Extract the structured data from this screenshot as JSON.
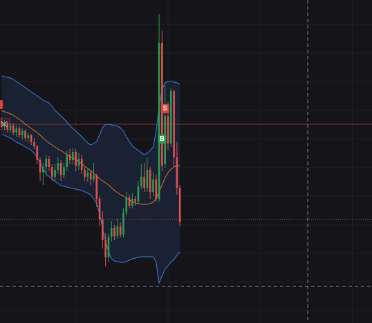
{
  "chart_data": {
    "type": "candlestick",
    "background": "#141419",
    "up_color": "#2e9e52",
    "down_color": "#e0534f",
    "grid": true,
    "grid_color": "#1f222b",
    "xlim": [
      -0.5,
      124.6
    ],
    "ylim": [
      0,
      468
    ],
    "xticks": [
      25,
      56,
      87,
      118
    ],
    "yticks": [
      18,
      59,
      101,
      142,
      184,
      225,
      267,
      308,
      350,
      391,
      433
    ],
    "open": [
      293,
      285,
      290,
      280,
      286,
      276,
      282,
      272,
      278,
      268,
      272,
      262,
      256,
      236,
      218,
      226,
      238,
      226,
      212,
      222,
      232,
      214,
      226,
      244,
      236,
      248,
      228,
      238,
      222,
      212,
      218,
      208,
      214,
      180,
      150,
      120,
      95,
      125,
      138,
      126,
      140,
      128,
      160,
      182,
      170,
      180,
      176,
      198,
      212,
      196,
      222,
      190,
      208,
      180,
      406,
      230,
      300,
      260,
      336,
      240,
      196
    ],
    "close": [
      286,
      290,
      280,
      286,
      276,
      282,
      272,
      278,
      268,
      272,
      262,
      256,
      236,
      218,
      226,
      238,
      226,
      212,
      222,
      232,
      214,
      226,
      244,
      236,
      248,
      228,
      238,
      222,
      212,
      218,
      208,
      214,
      180,
      150,
      120,
      95,
      125,
      138,
      126,
      140,
      128,
      160,
      182,
      170,
      180,
      176,
      198,
      212,
      196,
      222,
      190,
      208,
      180,
      406,
      228,
      300,
      260,
      336,
      240,
      196,
      146
    ],
    "high": [
      298,
      294,
      293,
      290,
      289,
      286,
      286,
      282,
      281,
      276,
      274,
      268,
      258,
      240,
      232,
      244,
      242,
      230,
      230,
      240,
      236,
      232,
      250,
      252,
      254,
      252,
      246,
      244,
      226,
      224,
      222,
      232,
      216,
      184,
      162,
      130,
      130,
      148,
      142,
      150,
      146,
      166,
      190,
      186,
      188,
      184,
      206,
      230,
      232,
      240,
      226,
      218,
      214,
      448,
      424,
      345,
      320,
      340,
      338,
      262,
      200
    ],
    "low": [
      282,
      280,
      276,
      276,
      272,
      270,
      268,
      266,
      264,
      262,
      258,
      252,
      230,
      206,
      200,
      212,
      220,
      206,
      206,
      216,
      206,
      210,
      220,
      230,
      230,
      220,
      222,
      216,
      206,
      204,
      200,
      204,
      168,
      140,
      108,
      82,
      88,
      118,
      120,
      122,
      124,
      124,
      156,
      166,
      166,
      170,
      172,
      194,
      190,
      190,
      180,
      184,
      176,
      176,
      220,
      225,
      250,
      255,
      226,
      186,
      140
    ],
    "series": [
      {
        "name": "upper",
        "color": "#3d7fd9",
        "values": [
          358,
          357,
          356,
          355,
          353,
          350,
          347,
          344,
          341,
          338,
          335,
          332,
          329,
          326,
          323,
          321,
          319,
          314,
          308,
          304,
          300,
          296,
          291,
          286,
          282,
          278,
          274,
          270,
          265,
          261,
          258,
          260,
          263,
          273,
          283,
          288,
          288,
          287,
          286,
          285,
          283,
          278,
          270,
          263,
          257,
          253,
          250,
          247,
          244,
          246,
          250,
          255,
          278,
          313,
          338,
          348,
          350,
          350,
          349,
          348,
          346
        ]
      },
      {
        "name": "middle",
        "color": "#d9782a",
        "values": [
          308,
          306,
          305,
          303,
          301,
          298,
          295,
          292,
          288,
          285,
          282,
          279,
          276,
          272,
          268,
          264,
          261,
          258,
          255,
          252,
          250,
          247,
          244,
          241,
          239,
          237,
          234,
          231,
          227,
          224,
          221,
          217,
          213,
          209,
          206,
          203,
          200,
          196,
          192,
          189,
          186,
          184,
          181,
          178,
          176,
          174,
          173,
          172,
          172,
          172,
          173,
          175,
          180,
          190,
          200,
          210,
          218,
          223,
          226,
          228,
          228
        ]
      },
      {
        "name": "lower",
        "color": "#3d7fd9",
        "values": [
          273,
          272,
          270,
          268,
          265,
          262,
          260,
          258,
          255,
          253,
          250,
          246,
          240,
          232,
          224,
          216,
          212,
          209,
          205,
          202,
          199,
          198,
          197,
          196,
          195,
          194,
          193,
          192,
          190,
          188,
          186,
          180,
          173,
          158,
          138,
          118,
          103,
          93,
          90,
          89,
          88,
          88,
          89,
          91,
          93,
          94,
          95,
          96,
          96,
          96,
          96,
          96,
          88,
          58,
          68,
          78,
          83,
          88,
          92,
          98,
          103
        ]
      }
    ],
    "band_fill": "#1a2132",
    "price_lines": [
      {
        "price": 288,
        "color": "#8e3232",
        "dash": "solid"
      },
      {
        "price": 150,
        "color": "#c8641e",
        "dash": "dotted"
      },
      {
        "price": 53,
        "color": "#8a8a92",
        "dash": "dashed"
      }
    ],
    "crosshair_x": 103,
    "markers": [
      {
        "label": "S",
        "x": 55,
        "price": 311,
        "color": "#d9443f"
      },
      {
        "label": "B",
        "x": 54,
        "price": 267,
        "color": "#2e9e52"
      }
    ]
  }
}
